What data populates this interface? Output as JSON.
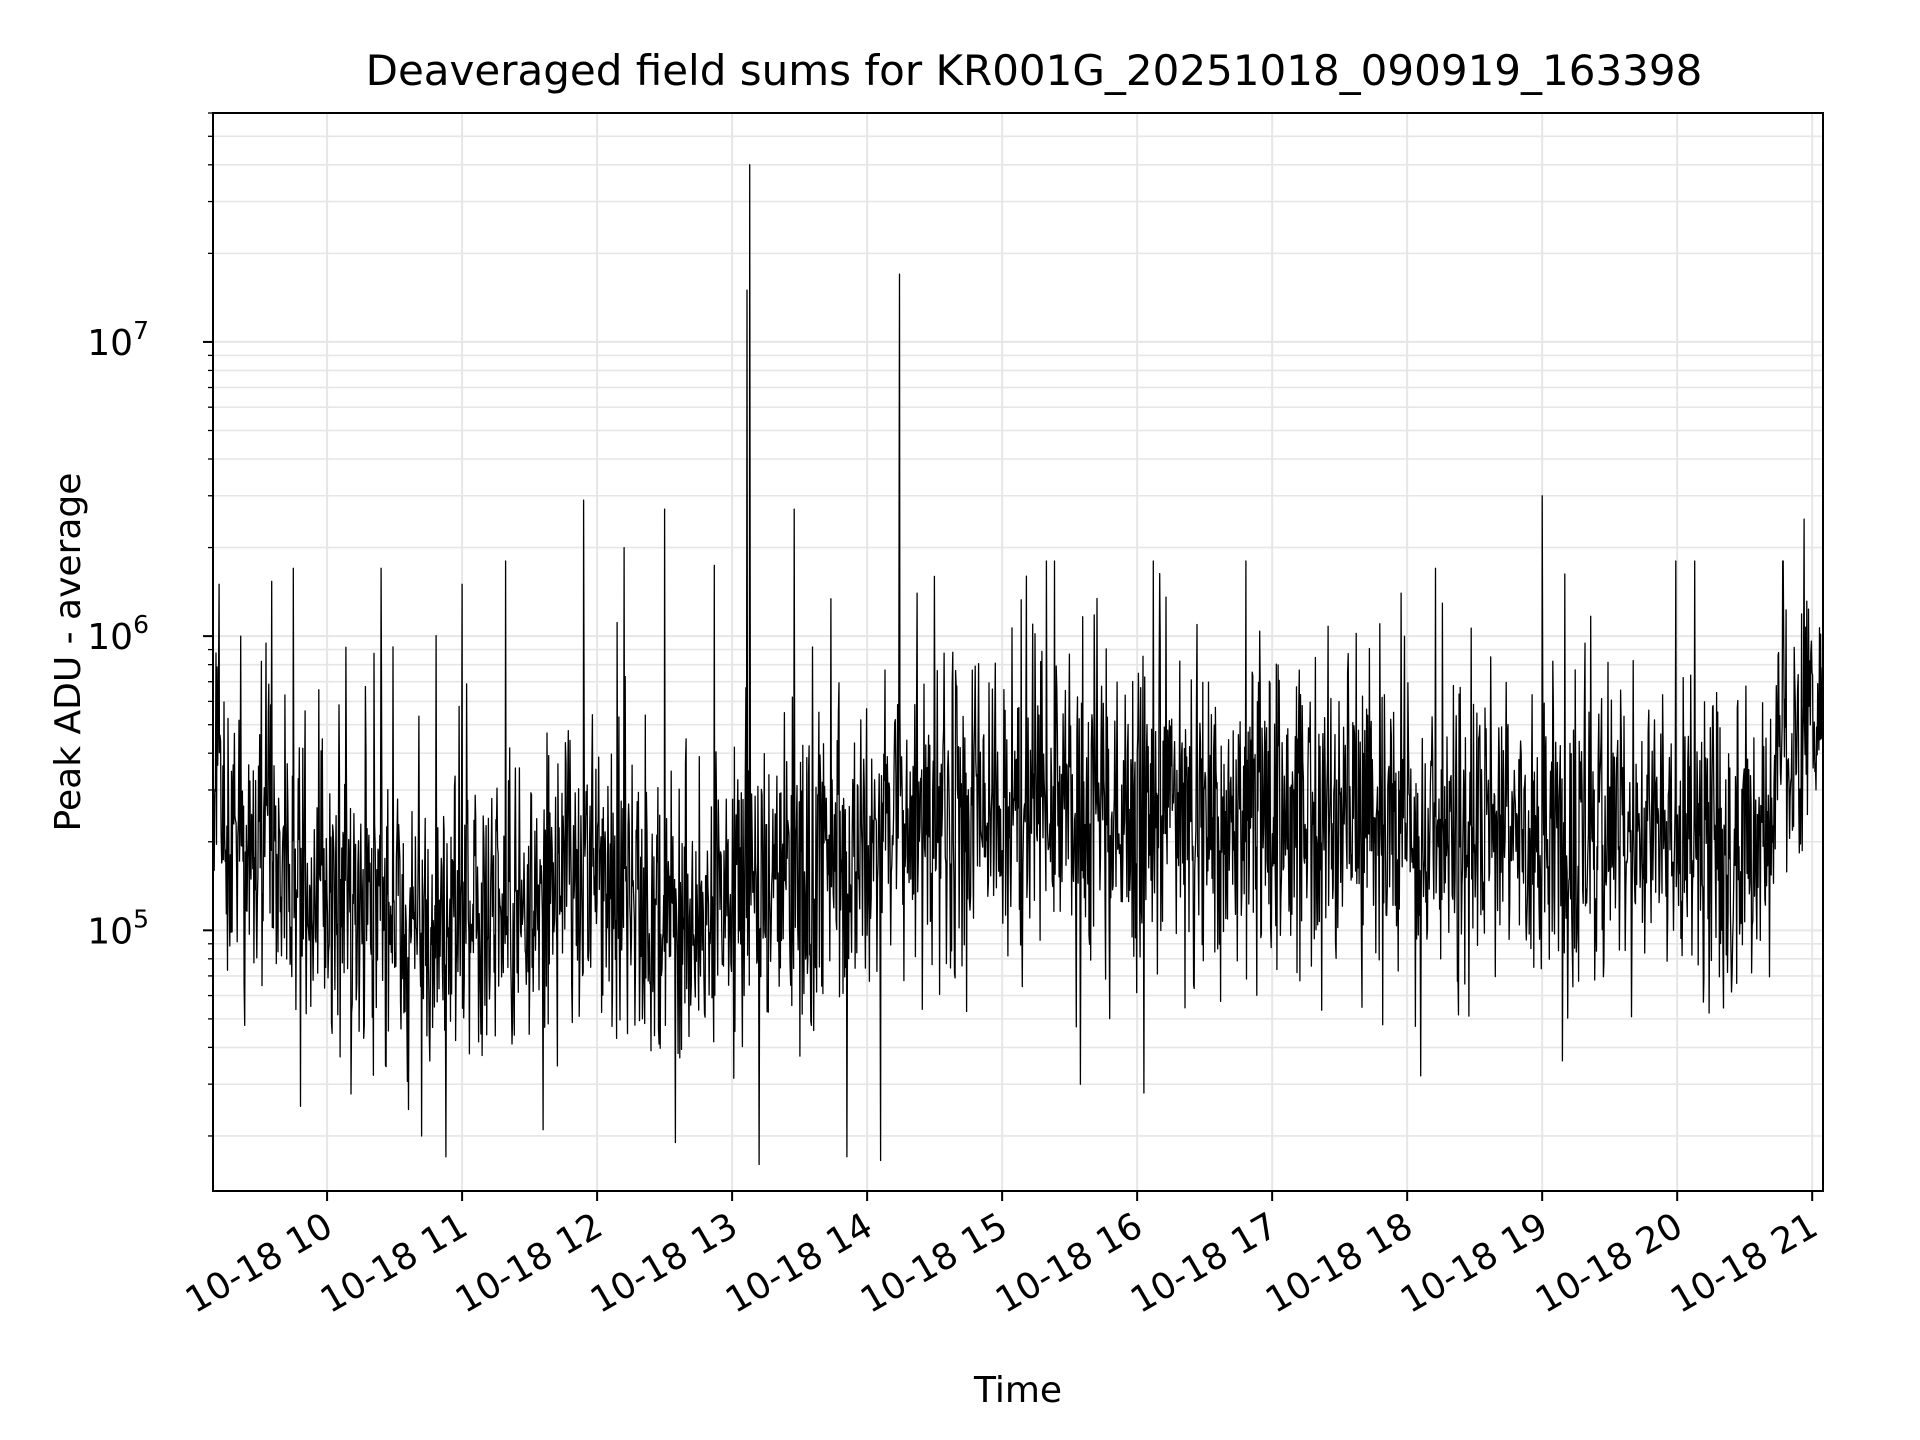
{
  "chart_data": {
    "type": "line",
    "title": "Deaveraged field sums for KR001G_20251018_090919_163398",
    "xlabel": "Time",
    "ylabel": "Peak ADU - average",
    "yscale": "log",
    "ylim": [
      13000,
      60000000
    ],
    "xlim_hours": [
      9.155,
      21.08
    ],
    "y_tick_labels": [
      {
        "value": 100000,
        "base": "10",
        "exp": "5"
      },
      {
        "value": 1000000,
        "base": "10",
        "exp": "6"
      },
      {
        "value": 10000000,
        "base": "10",
        "exp": "7"
      }
    ],
    "x_tick_labels": [
      {
        "hour": 10,
        "label": "10-18 10"
      },
      {
        "hour": 11,
        "label": "10-18 11"
      },
      {
        "hour": 12,
        "label": "10-18 12"
      },
      {
        "hour": 13,
        "label": "10-18 13"
      },
      {
        "hour": 14,
        "label": "10-18 14"
      },
      {
        "hour": 15,
        "label": "10-18 15"
      },
      {
        "hour": 16,
        "label": "10-18 16"
      },
      {
        "hour": 17,
        "label": "10-18 17"
      },
      {
        "hour": 18,
        "label": "10-18 18"
      },
      {
        "hour": 19,
        "label": "10-18 19"
      },
      {
        "hour": 20,
        "label": "10-18 20"
      },
      {
        "hour": 21,
        "label": "10-18 21"
      }
    ],
    "grid": true,
    "series": [
      {
        "name": "Peak ADU - average",
        "color": "#000000",
        "n_points": 2800,
        "baseline_profile": [
          {
            "hour": 9.16,
            "median": 300000
          },
          {
            "hour": 9.5,
            "median": 170000
          },
          {
            "hour": 10.5,
            "median": 110000
          },
          {
            "hour": 11.0,
            "median": 105000
          },
          {
            "hour": 11.5,
            "median": 120000
          },
          {
            "hour": 12.0,
            "median": 160000
          },
          {
            "hour": 12.5,
            "median": 110000
          },
          {
            "hour": 13.0,
            "median": 120000
          },
          {
            "hour": 13.5,
            "median": 140000
          },
          {
            "hour": 14.0,
            "median": 180000
          },
          {
            "hour": 14.5,
            "median": 210000
          },
          {
            "hour": 15.0,
            "median": 250000
          },
          {
            "hour": 16.0,
            "median": 250000
          },
          {
            "hour": 17.0,
            "median": 250000
          },
          {
            "hour": 18.0,
            "median": 210000
          },
          {
            "hour": 19.0,
            "median": 200000
          },
          {
            "hour": 20.0,
            "median": 200000
          },
          {
            "hour": 20.7,
            "median": 170000
          },
          {
            "hour": 20.75,
            "median": 400000
          },
          {
            "hour": 21.08,
            "median": 700000
          }
        ],
        "notable_peaks": [
          {
            "hour": 9.2,
            "value": 1500000
          },
          {
            "hour": 9.75,
            "value": 1700000
          },
          {
            "hour": 10.4,
            "value": 1700000
          },
          {
            "hour": 11.0,
            "value": 1500000
          },
          {
            "hour": 11.9,
            "value": 2900000
          },
          {
            "hour": 12.2,
            "value": 2000000
          },
          {
            "hour": 12.5,
            "value": 2700000
          },
          {
            "hour": 13.11,
            "value": 15000000
          },
          {
            "hour": 13.13,
            "value": 40000000
          },
          {
            "hour": 13.46,
            "value": 2700000
          },
          {
            "hour": 14.24,
            "value": 17000000
          },
          {
            "hour": 14.37,
            "value": 1400000
          },
          {
            "hour": 15.18,
            "value": 1600000
          },
          {
            "hour": 16.12,
            "value": 1800000
          },
          {
            "hour": 18.21,
            "value": 1700000
          },
          {
            "hour": 19.0,
            "value": 3000000
          },
          {
            "hour": 20.94,
            "value": 2500000
          }
        ],
        "notable_troughs": [
          {
            "hour": 10.7,
            "value": 20000
          },
          {
            "hour": 10.88,
            "value": 17000
          },
          {
            "hour": 11.6,
            "value": 21000
          },
          {
            "hour": 12.58,
            "value": 19000
          },
          {
            "hour": 13.2,
            "value": 16000
          },
          {
            "hour": 13.85,
            "value": 17000
          },
          {
            "hour": 14.1,
            "value": 16500
          },
          {
            "hour": 15.58,
            "value": 30000
          },
          {
            "hour": 16.05,
            "value": 28000
          },
          {
            "hour": 18.1,
            "value": 32000
          },
          {
            "hour": 19.15,
            "value": 36000
          }
        ]
      }
    ]
  }
}
